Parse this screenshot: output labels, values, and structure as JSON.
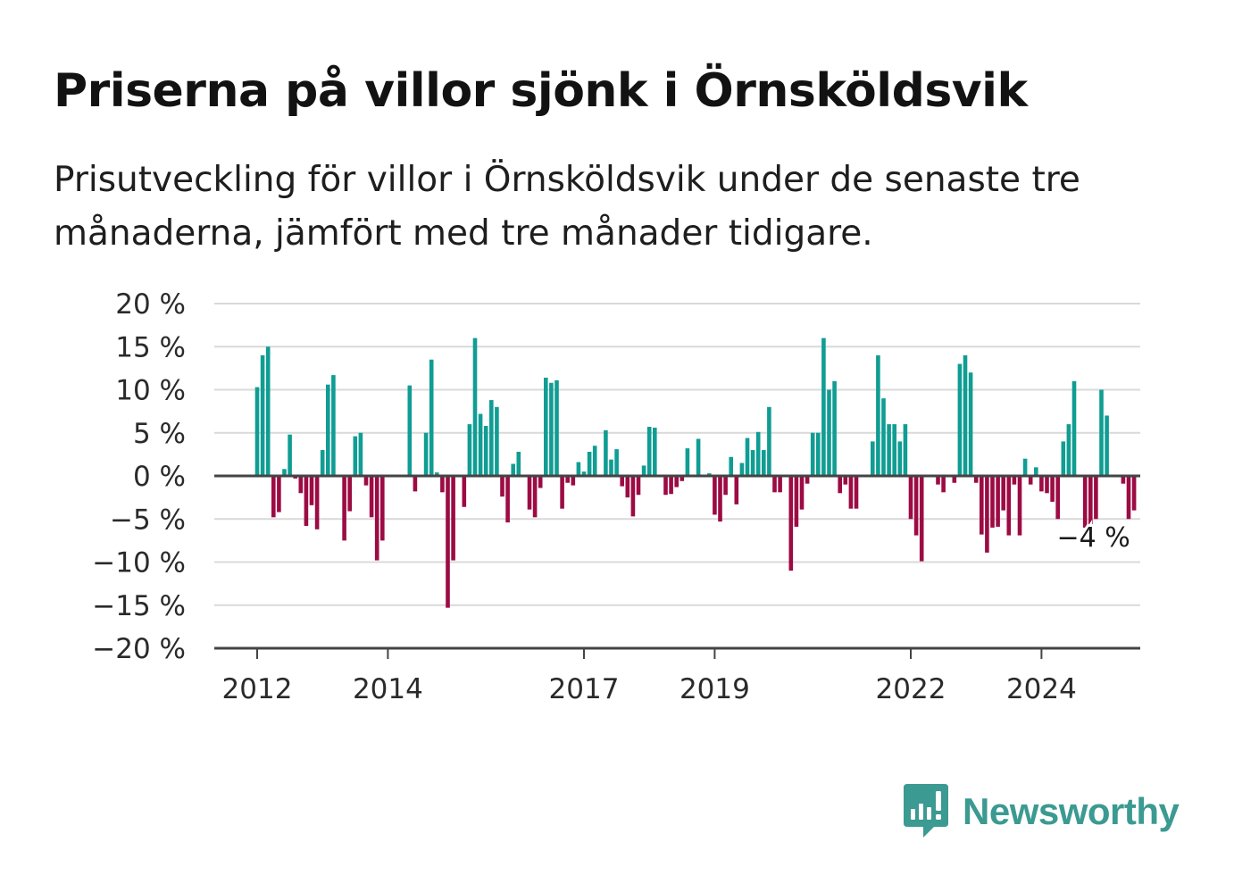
{
  "header": {
    "title": "Priserna på villor sjönk i Örnsköldsvik",
    "subtitle": "Prisutveckling för villor i Örnsköldsvik under de senaste tre månaderna, jämfört med tre månader tidigare."
  },
  "brand": {
    "name": "Newsworthy",
    "icon": "newsworthy-logo-icon",
    "color": "#3b9a91"
  },
  "chart_data": {
    "type": "bar",
    "yunit": " %",
    "ylim": [
      -20,
      20
    ],
    "yticks": [
      20,
      15,
      10,
      5,
      0,
      -5,
      -10,
      -15,
      -20
    ],
    "ytick_labels": [
      "20 %",
      "15 %",
      "10 %",
      "5 %",
      "0 %",
      "−5 %",
      "−10 %",
      "−15 %",
      "−20 %"
    ],
    "x_start": "2012-01",
    "xticks": [
      "2012",
      "2014",
      "2017",
      "2019",
      "2022",
      "2024"
    ],
    "xticks_month_index": [
      0,
      24,
      60,
      84,
      120,
      144
    ],
    "grid": true,
    "colors": {
      "positive": "#109d93",
      "negative": "#9c0b44",
      "grid": "#d9d9d9",
      "axis": "#444444"
    },
    "annotation": {
      "text": "−4 %",
      "month_index": 155,
      "value": -4
    },
    "values": [
      10.3,
      14,
      15,
      -4.8,
      -4.2,
      0.8,
      4.8,
      -0.3,
      -2,
      -5.8,
      -3.4,
      -6.2,
      3,
      10.6,
      11.7,
      0,
      -7.5,
      -4.1,
      4.6,
      5,
      -1.1,
      -4.8,
      -9.8,
      -7.5,
      0,
      0,
      0,
      0,
      10.5,
      -1.8,
      0,
      5,
      13.5,
      0.4,
      -1.9,
      -15.3,
      -9.8,
      0,
      -3.6,
      6,
      16,
      7.2,
      5.8,
      8.8,
      8,
      -2.4,
      -5.4,
      1.4,
      2.8,
      0,
      -3.9,
      -4.8,
      -1.4,
      11.4,
      10.8,
      11.1,
      -3.8,
      -0.8,
      -1.1,
      1.6,
      0.5,
      2.8,
      3.5,
      0,
      5.3,
      1.9,
      3.1,
      -1.2,
      -2.5,
      -4.7,
      -2.2,
      1.2,
      5.7,
      5.6,
      0,
      -2.2,
      -2.1,
      -1.3,
      -0.6,
      3.2,
      0,
      4.3,
      0,
      0.3,
      -4.5,
      -5.3,
      -2.2,
      2.2,
      -3.3,
      1.5,
      4.4,
      3,
      5.1,
      3,
      8,
      -1.9,
      -1.9,
      0,
      -11,
      -5.9,
      -3.9,
      -0.9,
      5,
      5,
      16,
      10,
      11,
      -2,
      -1,
      -3.8,
      -3.8,
      0,
      0,
      4,
      14,
      9,
      6,
      6,
      4,
      6,
      -5,
      -6.9,
      -9.9,
      0,
      0,
      -1,
      -1.9,
      0,
      -0.8,
      13,
      14,
      12,
      -0.8,
      -6.8,
      -8.9,
      -6,
      -5.9,
      -4,
      -6.9,
      -1,
      -6.9,
      2,
      -1,
      1,
      -1.8,
      -2,
      -3,
      -5,
      4,
      6,
      11,
      0,
      -6,
      -6.5,
      -5,
      10,
      7,
      0,
      0,
      -0.9,
      -5,
      -4
    ]
  }
}
